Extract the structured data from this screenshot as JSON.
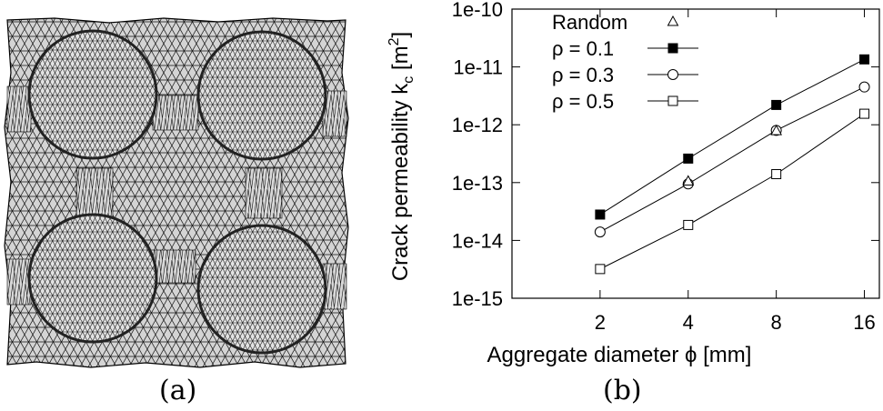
{
  "panel_a": {
    "caption": "(a)"
  },
  "panel_b": {
    "caption": "(b)"
  },
  "chart_data": {
    "type": "line",
    "log_x": true,
    "log_y": true,
    "x": [
      2,
      4,
      8,
      16
    ],
    "x_tick_labels": [
      "2",
      "4",
      "8",
      "16"
    ],
    "xlim": [
      1,
      18
    ],
    "ylim": [
      1e-15,
      1e-10
    ],
    "y_tick_values": [
      1e-15,
      1e-14,
      1e-13,
      1e-12,
      1e-11,
      1e-10
    ],
    "y_tick_labels": [
      "1e-15",
      "1e-14",
      "1e-13",
      "1e-12",
      "1e-11",
      "1e-10"
    ],
    "xlabel": "Aggregate diameter ϕ [mm]",
    "ylabel": "Crack permeability k",
    "ylabel_sub": "c",
    "ylabel_unit_open": " [m",
    "ylabel_unit_sup": "2",
    "ylabel_unit_close": "]",
    "legend_position": "top-left",
    "grid": false,
    "series": [
      {
        "name": "Random",
        "marker": "triangle-open",
        "line": false,
        "values": [
          null,
          1.05e-13,
          7.8e-13,
          null
        ]
      },
      {
        "name": "ρ = 0.1",
        "marker": "square-filled",
        "line": true,
        "values": [
          2.8e-14,
          2.6e-13,
          2.2e-12,
          1.35e-11
        ]
      },
      {
        "name": "ρ = 0.3",
        "marker": "circle-open",
        "line": true,
        "values": [
          1.4e-14,
          9.5e-14,
          8e-13,
          4.5e-12
        ]
      },
      {
        "name": "ρ = 0.5",
        "marker": "square-open",
        "line": true,
        "values": [
          3.2e-15,
          1.85e-14,
          1.4e-13,
          1.55e-12
        ]
      }
    ]
  }
}
